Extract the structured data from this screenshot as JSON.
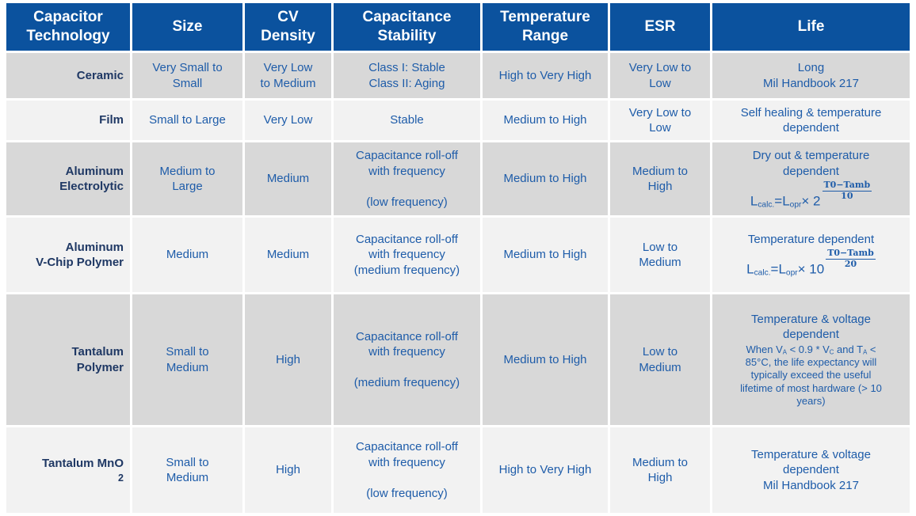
{
  "colors": {
    "header_bg": "#0b529e",
    "header_text": "#ffffff",
    "body_text": "#1e5ca9",
    "tech_text": "#1f3864",
    "row_dark": "#d8d8d8",
    "row_light": "#f2f2f2",
    "grid_gap": "#ffffff"
  },
  "header": {
    "columns": [
      "Capacitor\nTechnology",
      "Size",
      "CV\nDensity",
      "Capacitance\nStability",
      "Temperature\nRange",
      "ESR",
      "Life"
    ]
  },
  "rows": [
    {
      "tech": "Ceramic",
      "size": "Very Small to\nSmall",
      "cv": "Very Low\nto Medium",
      "stability": "Class I: Stable\nClass II: Aging",
      "temp": "High to Very High",
      "esr": "Very Low to\nLow",
      "life": "Long\nMil Handbook 217"
    },
    {
      "tech": "Film",
      "size": "Small to Large",
      "cv": "Very Low",
      "stability": "Stable",
      "temp": "Medium to High",
      "esr": "Very Low to\nLow",
      "life": "Self healing & temperature\ndependent"
    },
    {
      "tech": "Aluminum\nElectrolytic",
      "size": "Medium to\nLarge",
      "cv": "Medium",
      "stability": "Capacitance roll-off\nwith frequency\n\n(low frequency)",
      "temp": "Medium to High",
      "esr": "Medium to\nHigh",
      "life_heading": "Dry out & temperature\ndependent",
      "life_formula": [
        {
          "t": "L"
        },
        {
          "sub": "calc."
        },
        {
          "t": "=L"
        },
        {
          "sub": "opr"
        },
        {
          "t": "× 2"
        },
        {
          "frac": {
            "num": "T0−Tamb",
            "den": "10"
          }
        }
      ]
    },
    {
      "tech": "Aluminum\nV-Chip Polymer",
      "size": "Medium",
      "cv": "Medium",
      "stability": "Capacitance roll-off\nwith frequency\n(medium frequency)",
      "temp": "Medium to High",
      "esr": "Low to\nMedium",
      "life_heading": "Temperature dependent",
      "life_formula": [
        {
          "t": "L"
        },
        {
          "sub": "calc."
        },
        {
          "t": "=L"
        },
        {
          "sub": "opr"
        },
        {
          "t": "× 10"
        },
        {
          "frac": {
            "num": "T0−Tamb",
            "den": "20"
          }
        }
      ]
    },
    {
      "tech": "Tantalum\nPolymer",
      "size": "Small to\nMedium",
      "cv": "High",
      "stability": "Capacitance roll-off\nwith frequency\n\n(medium frequency)",
      "temp": "Medium to High",
      "esr": "Low to\nMedium",
      "life_heading": "Temperature & voltage\ndependent",
      "life_note": [
        {
          "t": "When V"
        },
        {
          "sub": "A"
        },
        {
          "t": " < 0.9 * V"
        },
        {
          "sub": "C"
        },
        {
          "t": " and T"
        },
        {
          "sub": "A"
        },
        {
          "t": " <"
        },
        {
          "br": true
        },
        {
          "t": "85°C, the life expectancy will"
        },
        {
          "br": true
        },
        {
          "t": "typically exceed the useful"
        },
        {
          "br": true
        },
        {
          "t": "lifetime of most hardware (> 10"
        },
        {
          "br": true
        },
        {
          "t": "years)"
        }
      ]
    },
    {
      "tech_rich": [
        {
          "t": "Tantalum MnO"
        },
        {
          "sub": "2"
        }
      ],
      "size": "Small to\nMedium",
      "cv": "High",
      "stability": "Capacitance roll-off\nwith frequency\n\n(low frequency)",
      "temp": "High to Very High",
      "esr": "Medium to\nHigh",
      "life": "Temperature & voltage\ndependent\nMil Handbook 217"
    }
  ]
}
